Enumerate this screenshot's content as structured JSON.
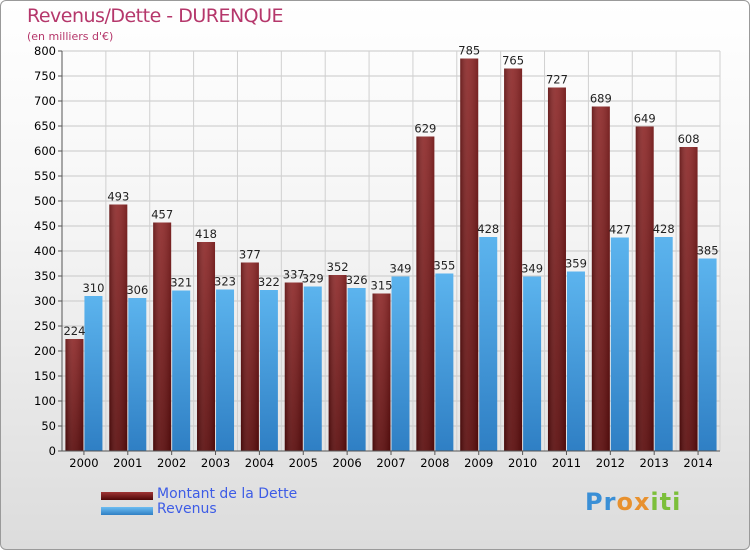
{
  "title": "Revenus/Dette - DURENQUE",
  "subtitle": "(en milliers d'€)",
  "logo": "Proxiti",
  "colors": {
    "dette": "#7a1c1c",
    "revenus": "#4ea6e6",
    "title": "#b5376b",
    "legend_text": "#3d5ce6"
  },
  "chart_data": {
    "type": "bar",
    "title": "Revenus/Dette - DURENQUE",
    "ylabel": "(en milliers d'€)",
    "ylim": [
      0,
      800
    ],
    "yticks": [
      0,
      50,
      100,
      150,
      200,
      250,
      300,
      350,
      400,
      450,
      500,
      550,
      600,
      650,
      700,
      750,
      800
    ],
    "grid": true,
    "legend_position": "bottom-left",
    "categories": [
      "2000",
      "2001",
      "2002",
      "2003",
      "2004",
      "2005",
      "2006",
      "2007",
      "2008",
      "2009",
      "2010",
      "2011",
      "2012",
      "2013",
      "2014"
    ],
    "series": [
      {
        "name": "Montant de la Dette",
        "values": [
          224,
          493,
          457,
          418,
          377,
          337,
          352,
          315,
          629,
          785,
          765,
          727,
          689,
          649,
          608
        ]
      },
      {
        "name": "Revenus",
        "values": [
          310,
          306,
          321,
          323,
          322,
          329,
          326,
          349,
          355,
          428,
          349,
          359,
          427,
          428,
          385
        ]
      }
    ]
  }
}
